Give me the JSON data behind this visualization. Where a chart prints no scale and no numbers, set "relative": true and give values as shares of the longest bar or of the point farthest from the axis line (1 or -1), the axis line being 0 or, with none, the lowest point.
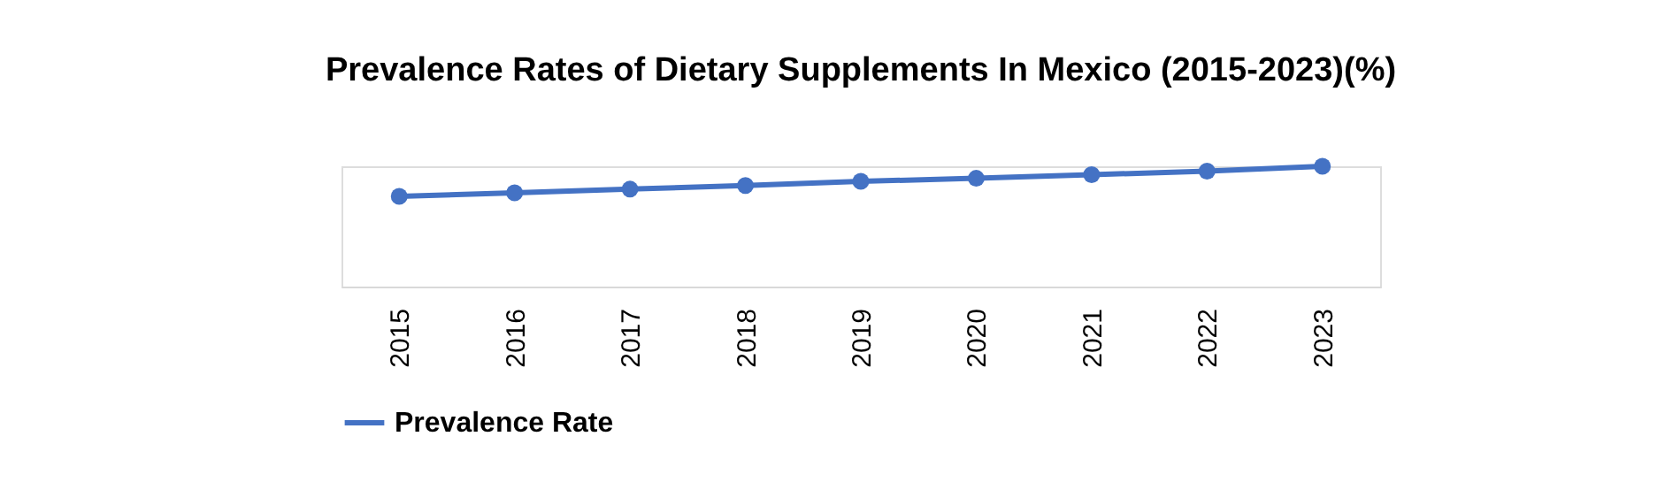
{
  "chart_data": {
    "type": "line",
    "title": "Prevalence Rates of Dietary Supplements In Mexico (2015-2023)(%)",
    "relative": true,
    "categories": [
      "2015",
      "2016",
      "2017",
      "2018",
      "2019",
      "2020",
      "2021",
      "2022",
      "2023"
    ],
    "series": [
      {
        "name": "Prevalence Rate",
        "color": "#4472c4",
        "values": [
          0.75,
          0.78,
          0.81,
          0.84,
          0.875,
          0.9,
          0.93,
          0.96,
          1
        ]
      }
    ],
    "marker": "circle",
    "line_style": "solid",
    "grid": false,
    "legend": "bottom"
  }
}
